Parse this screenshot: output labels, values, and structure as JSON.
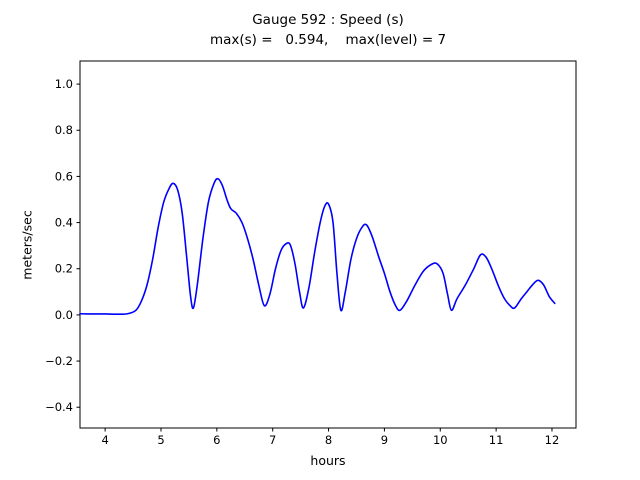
{
  "figure": {
    "title": "Gauge 592 : Speed (s)",
    "subtitle": "max(s) =   0.594,    max(level) = 7",
    "xlabel": "hours",
    "ylabel": "meters/sec"
  },
  "chart_data": {
    "type": "line",
    "title": "Gauge 592 : Speed (s)",
    "subtitle": "max(s) =   0.594,    max(level) = 7",
    "xlabel": "hours",
    "ylabel": "meters/sec",
    "max_s": 0.594,
    "max_level": 7,
    "xlim": [
      3.55,
      12.43
    ],
    "ylim": [
      -0.49,
      1.1
    ],
    "x_ticks": [
      4,
      5,
      6,
      7,
      8,
      9,
      10,
      11,
      12
    ],
    "y_ticks": [
      -0.4,
      -0.2,
      0.0,
      0.2,
      0.4,
      0.6,
      0.8,
      1.0
    ],
    "grid": false,
    "legend": "none",
    "line_color": "#0000ff",
    "line_width": 1.6,
    "series": [
      {
        "name": "speed",
        "x": [
          3.55,
          3.8,
          4.0,
          4.2,
          4.4,
          4.55,
          4.65,
          4.75,
          4.85,
          4.95,
          5.05,
          5.15,
          5.22,
          5.3,
          5.38,
          5.46,
          5.53,
          5.58,
          5.65,
          5.75,
          5.85,
          5.95,
          6.02,
          6.1,
          6.18,
          6.25,
          6.35,
          6.45,
          6.55,
          6.65,
          6.75,
          6.85,
          6.95,
          7.05,
          7.15,
          7.25,
          7.32,
          7.4,
          7.48,
          7.55,
          7.65,
          7.75,
          7.85,
          7.93,
          8.0,
          8.08,
          8.15,
          8.22,
          8.3,
          8.4,
          8.5,
          8.6,
          8.68,
          8.78,
          8.9,
          9.0,
          9.1,
          9.2,
          9.28,
          9.4,
          9.55,
          9.7,
          9.85,
          9.95,
          10.05,
          10.13,
          10.2,
          10.3,
          10.45,
          10.6,
          10.72,
          10.82,
          10.92,
          11.05,
          11.15,
          11.25,
          11.33,
          11.45,
          11.55,
          11.65,
          11.75,
          11.85,
          11.95,
          12.05
        ],
        "y": [
          0.005,
          0.004,
          0.004,
          0.003,
          0.005,
          0.02,
          0.06,
          0.13,
          0.24,
          0.38,
          0.49,
          0.55,
          0.57,
          0.54,
          0.44,
          0.25,
          0.08,
          0.03,
          0.13,
          0.33,
          0.49,
          0.57,
          0.59,
          0.56,
          0.5,
          0.46,
          0.44,
          0.4,
          0.33,
          0.24,
          0.13,
          0.04,
          0.09,
          0.2,
          0.28,
          0.31,
          0.3,
          0.22,
          0.1,
          0.03,
          0.12,
          0.27,
          0.4,
          0.47,
          0.48,
          0.4,
          0.18,
          0.02,
          0.1,
          0.24,
          0.33,
          0.38,
          0.39,
          0.34,
          0.25,
          0.18,
          0.1,
          0.04,
          0.02,
          0.06,
          0.13,
          0.19,
          0.22,
          0.22,
          0.18,
          0.09,
          0.02,
          0.07,
          0.13,
          0.2,
          0.26,
          0.25,
          0.2,
          0.12,
          0.07,
          0.04,
          0.03,
          0.07,
          0.1,
          0.13,
          0.15,
          0.13,
          0.08,
          0.05
        ]
      }
    ]
  }
}
